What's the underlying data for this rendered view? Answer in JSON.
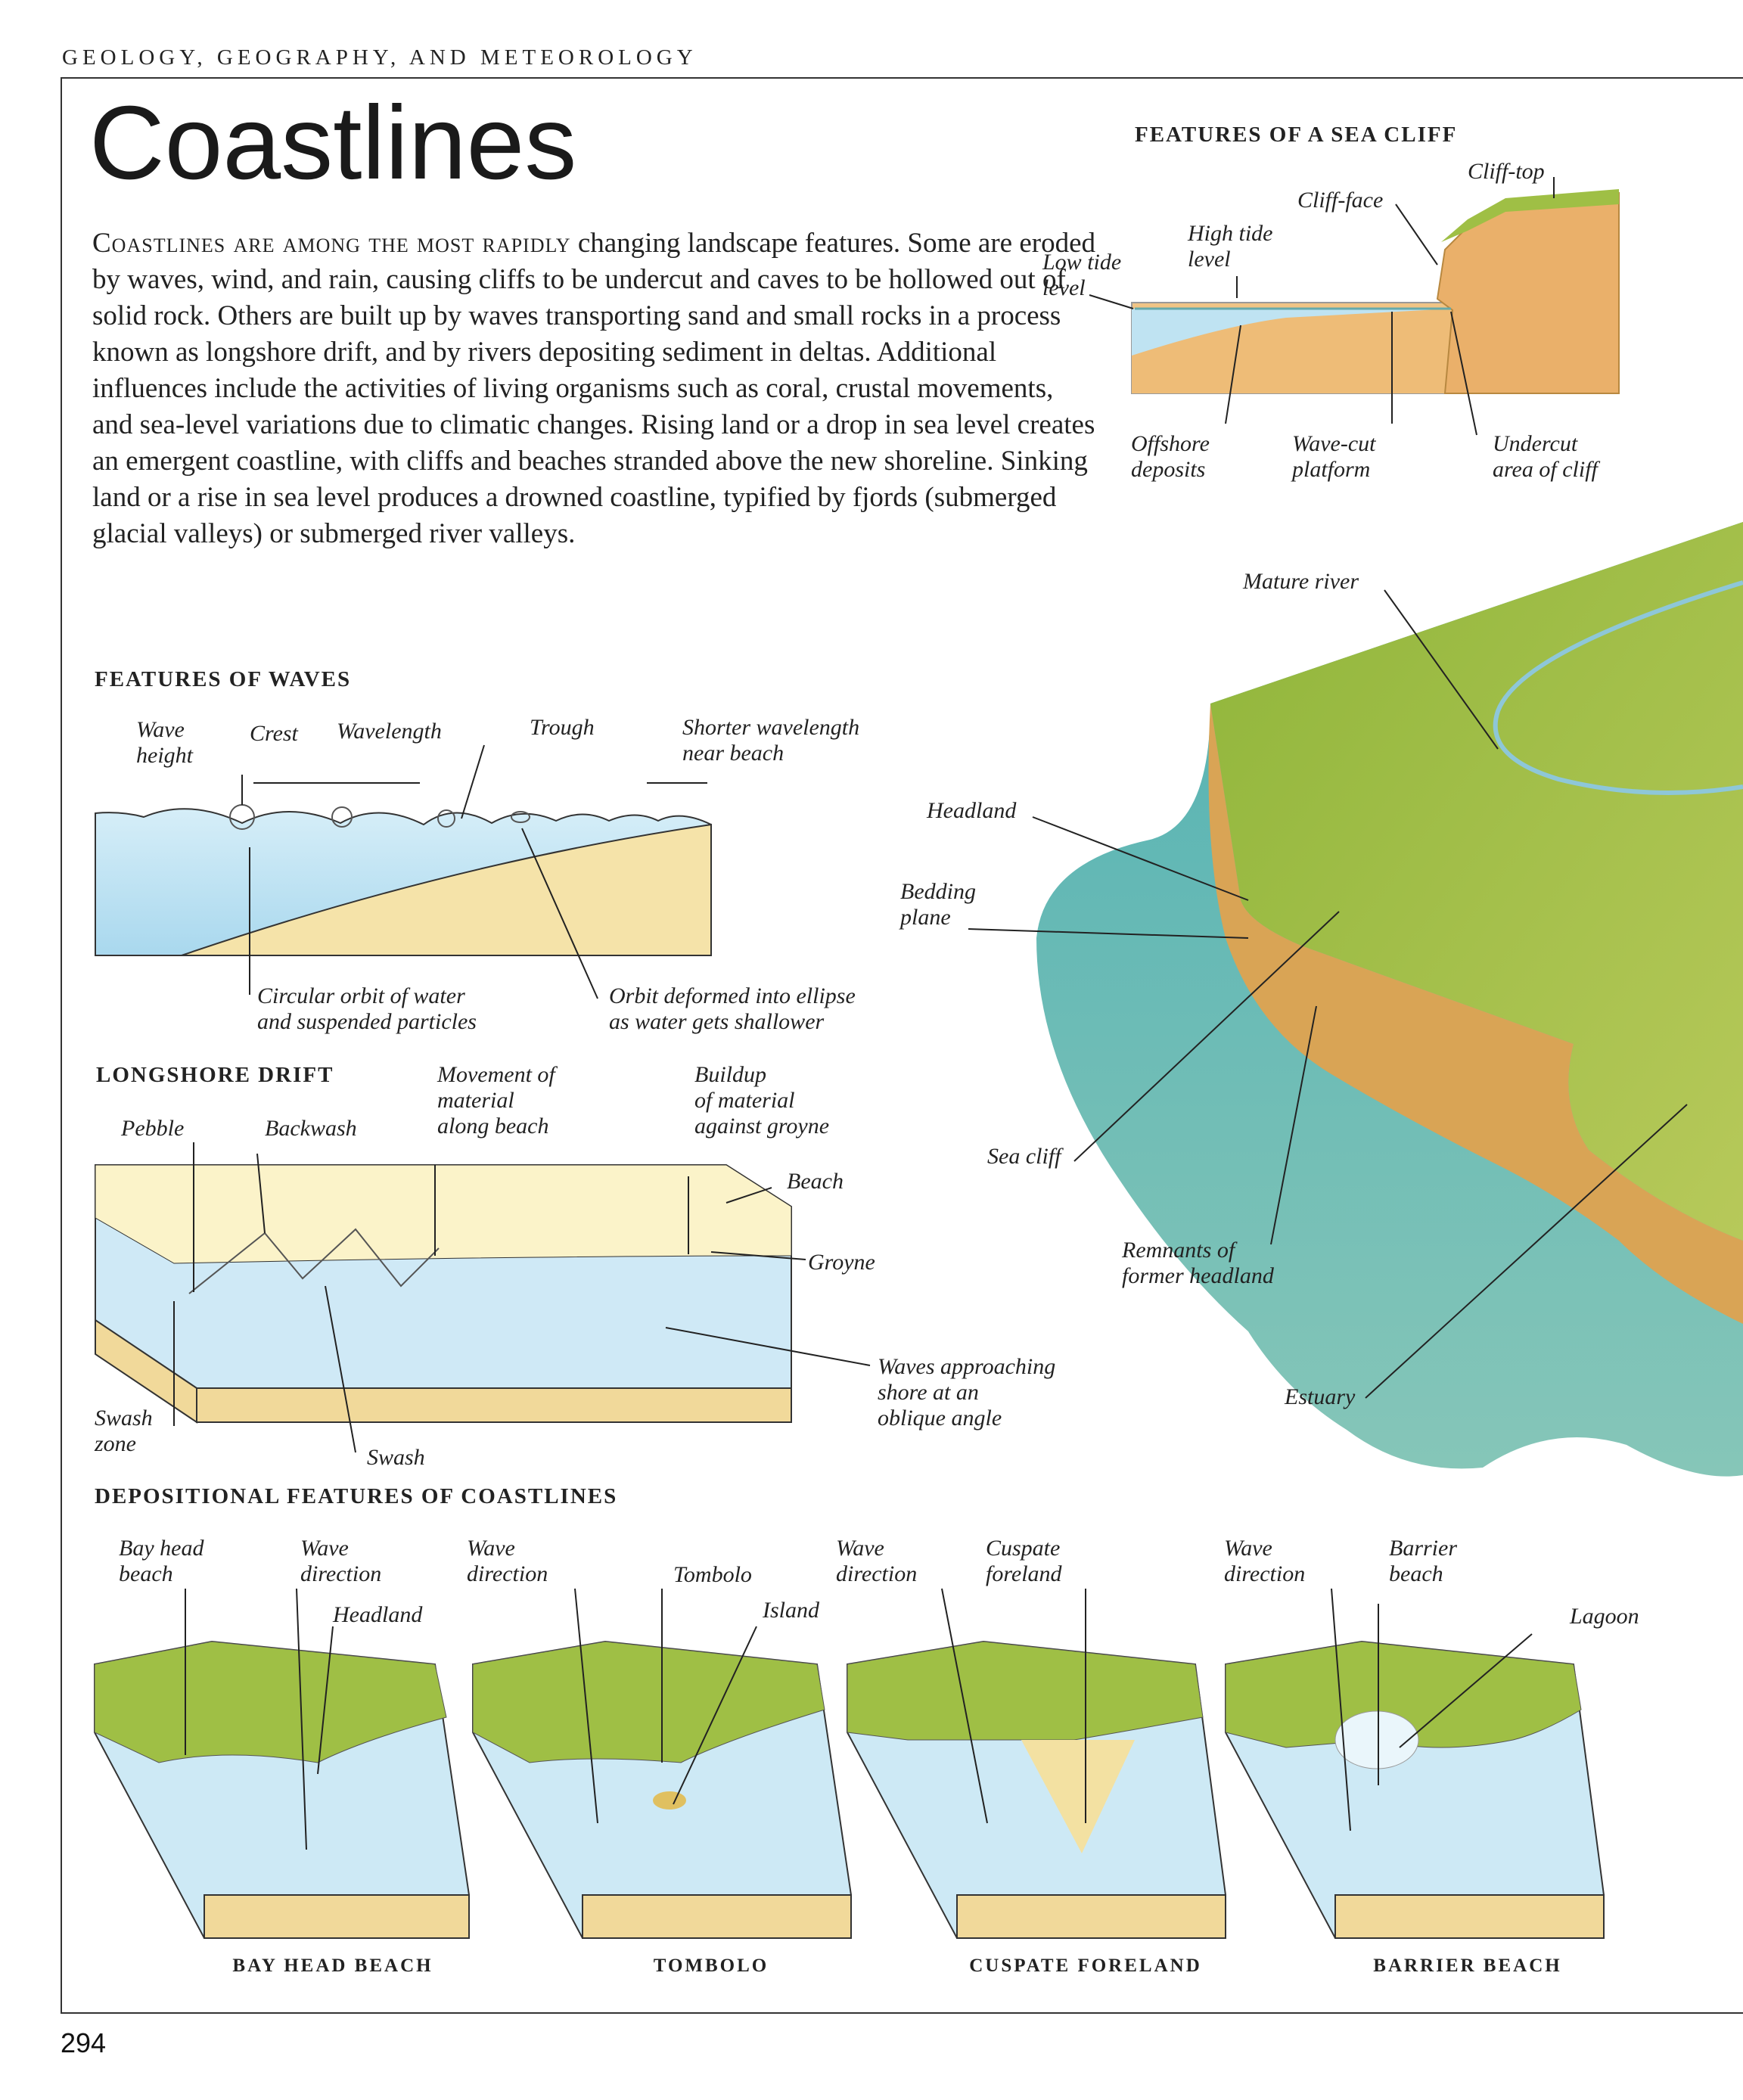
{
  "header": {
    "running_head": "GEOLOGY, GEOGRAPHY, AND METEOROLOGY",
    "page_number": "294"
  },
  "title": "Coastlines",
  "intro": {
    "lead": "Coastlines are among the most rapidly",
    "body": " changing landscape features. Some are eroded by waves, wind, and rain, causing cliffs to be undercut and caves to be hollowed out of solid rock. Others are built up by waves transporting sand and small rocks in a process known as longshore drift, and by rivers depositing sediment in deltas. Additional influences include the activities of living organisms such as coral, crustal movements, and sea-level variations due to climatic changes. Rising land or a drop in sea level creates an emergent coastline, with cliffs and beaches stranded above the new shoreline. Sinking land or a rise in sea level produces a drowned coastline, typified by fjords (submerged glacial valleys) or submerged river valleys."
  },
  "sea_cliff": {
    "heading": "FEATURES OF A SEA CLIFF",
    "labels": {
      "cliff_top": "Cliff-top",
      "cliff_face": "Cliff-face",
      "high_tide": "High tide\nlevel",
      "low_tide": "Low tide\nlevel",
      "offshore": "Offshore\ndeposits",
      "wave_cut": "Wave-cut\nplatform",
      "undercut": "Undercut\narea of cliff"
    }
  },
  "waves": {
    "heading": "FEATURES OF WAVES",
    "labels": {
      "wave_height": "Wave\nheight",
      "crest": "Crest",
      "wavelength": "Wavelength",
      "trough": "Trough",
      "shorter": "Shorter wavelength\nnear beach",
      "circular": "Circular orbit of water\nand suspended particles",
      "orbit": "Orbit deformed into ellipse\nas water gets shallower"
    }
  },
  "drift": {
    "heading": "LONGSHORE DRIFT",
    "labels": {
      "pebble": "Pebble",
      "backwash": "Backwash",
      "movement": "Movement of\nmaterial\nalong beach",
      "buildup": "Buildup\nof  material\nagainst groyne",
      "beach": "Beach",
      "groyne": "Groyne",
      "approach": "Waves approaching\nshore at an\noblique angle",
      "swash_zone": "Swash\nzone",
      "swash": "Swash"
    }
  },
  "landscape": {
    "labels": {
      "mature_river": "Mature river",
      "headland": "Headland",
      "bedding": "Bedding\nplane",
      "sea_cliff": "Sea cliff",
      "remnants": "Remnants of\nformer headland",
      "estuary": "Estuary"
    }
  },
  "depositional": {
    "heading": "DEPOSITIONAL FEATURES OF COASTLINES",
    "labels": {
      "bay_head_beach": "Bay head\nbeach",
      "wave_dir": "Wave\ndirection",
      "headland": "Headland",
      "tombolo": "Tombolo",
      "island": "Island",
      "cuspate": "Cuspate\nforeland",
      "barrier": "Barrier\nbeach",
      "lagoon": "Lagoon"
    },
    "captions": [
      "BAY HEAD BEACH",
      "TOMBOLO",
      "CUSPATE FORELAND",
      "BARRIER BEACH"
    ]
  },
  "colors": {
    "water": "#bfe3f2",
    "sand": "#f3dfa2",
    "cliff": "#e8b46a",
    "grass": "#9fbf45",
    "sea": "#5fb7b8"
  }
}
